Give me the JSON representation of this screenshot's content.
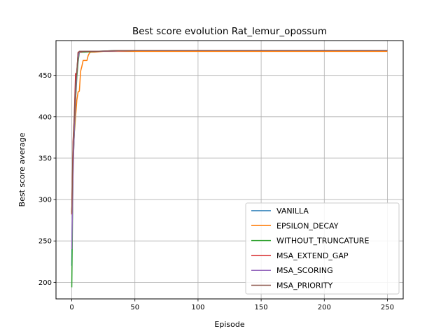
{
  "chart_data": {
    "type": "line",
    "title": "Best score evolution Rat_lemur_opossum",
    "xlabel": "Episode",
    "ylabel": "Best score average",
    "xlim": [
      -12.5,
      262.5
    ],
    "ylim": [
      180,
      492
    ],
    "xticks": [
      0,
      50,
      100,
      150,
      200,
      250
    ],
    "yticks": [
      200,
      250,
      300,
      350,
      400,
      450
    ],
    "grid": true,
    "legend_position": "lower-right",
    "series": [
      {
        "name": "VANILLA",
        "color": "#1f77b4",
        "x": [
          0,
          1,
          2,
          3,
          4,
          5,
          6,
          8,
          10,
          20,
          35,
          50,
          100,
          150,
          200,
          250
        ],
        "y": [
          220,
          360,
          395,
          430,
          452,
          474,
          478,
          478,
          479,
          479,
          480,
          480,
          480,
          480,
          480,
          480
        ]
      },
      {
        "name": "EPSILON_DECAY",
        "color": "#ff7f0e",
        "x": [
          0,
          1,
          2,
          3,
          4,
          5,
          6,
          7,
          8,
          9,
          10,
          11,
          12,
          13,
          14,
          15,
          18,
          25,
          50,
          100,
          150,
          200,
          250
        ],
        "y": [
          285,
          350,
          380,
          400,
          420,
          430,
          431,
          455,
          461,
          468,
          468,
          468,
          468,
          474,
          477,
          478,
          478,
          479,
          479,
          479,
          479,
          479,
          479
        ]
      },
      {
        "name": "WITHOUT_TRUNCATURE",
        "color": "#2ca02c",
        "x": [
          0,
          1,
          2,
          3,
          4,
          5,
          6,
          10,
          20,
          50,
          100,
          150,
          200,
          250
        ],
        "y": [
          194,
          340,
          380,
          420,
          448,
          466,
          478,
          478,
          479,
          480,
          480,
          480,
          480,
          480
        ]
      },
      {
        "name": "MSA_EXTEND_GAP",
        "color": "#d62728",
        "x": [
          0,
          1,
          2,
          3,
          4,
          5,
          6,
          10,
          20,
          50,
          100,
          150,
          200,
          250
        ],
        "y": [
          282,
          370,
          400,
          452,
          453,
          478,
          478,
          479,
          479,
          480,
          480,
          480,
          480,
          480
        ]
      },
      {
        "name": "MSA_SCORING",
        "color": "#9467bd",
        "x": [
          0,
          1,
          2,
          3,
          4,
          5,
          6,
          10,
          20,
          50,
          100,
          150,
          200,
          250
        ],
        "y": [
          240,
          330,
          385,
          425,
          455,
          470,
          479,
          479,
          479,
          480,
          480,
          480,
          480,
          480
        ]
      },
      {
        "name": "MSA_PRIORITY",
        "color": "#8c564b",
        "x": [
          0,
          1,
          2,
          3,
          4,
          5,
          6,
          10,
          20,
          35,
          50,
          100,
          150,
          200,
          250
        ],
        "y": [
          283,
          365,
          400,
          440,
          455,
          477,
          479,
          479,
          479,
          480,
          480,
          480,
          480,
          480,
          480
        ]
      }
    ]
  }
}
